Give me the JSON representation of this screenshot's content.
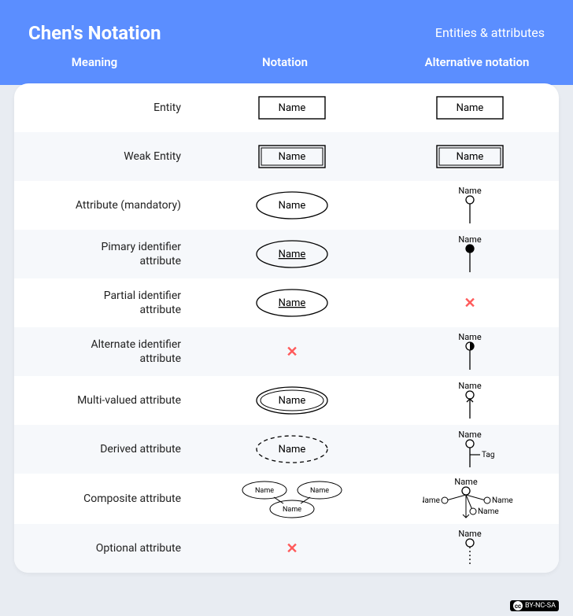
{
  "header": {
    "title": "Chen's Notation",
    "subtitle": "Entities & attributes"
  },
  "columns": {
    "meaning": "Meaning",
    "notation": "Notation",
    "alternative": "Alternative notation"
  },
  "labels": {
    "name": "Name",
    "tag": "Tag"
  },
  "rows": [
    {
      "meaning": "Entity",
      "notation": "rect",
      "alt": "rect"
    },
    {
      "meaning": "Weak Entity",
      "notation": "rect-double",
      "alt": "rect-double"
    },
    {
      "meaning": "Attribute (mandatory)",
      "notation": "ellipse",
      "alt": "lollipop-open"
    },
    {
      "meaning": "Pimary identifier attribute",
      "notation": "ellipse-under",
      "alt": "lollipop-filled"
    },
    {
      "meaning": "Partial identifier attribute",
      "notation": "ellipse-under",
      "alt": "cross"
    },
    {
      "meaning": "Alternate identifier attribute",
      "notation": "cross",
      "alt": "lollipop-half"
    },
    {
      "meaning": "Multi-valued attribute",
      "notation": "ellipse-double",
      "alt": "lollipop-arrowtail"
    },
    {
      "meaning": "Derived attribute",
      "notation": "ellipse-dashed",
      "alt": "lollipop-tag"
    },
    {
      "meaning": "Composite attribute",
      "notation": "three-ellipses",
      "alt": "branching"
    },
    {
      "meaning": "Optional attribute",
      "notation": "cross",
      "alt": "lollipop-dashed"
    }
  ],
  "colors": {
    "header_bg": "#5b8eff",
    "page_bg": "#e8ecf2",
    "row_alt_bg": "#f6f8fb",
    "stroke": "#000000",
    "cross": "#ff5a5a",
    "text": "#222222"
  },
  "license": "BY-NC-SA"
}
